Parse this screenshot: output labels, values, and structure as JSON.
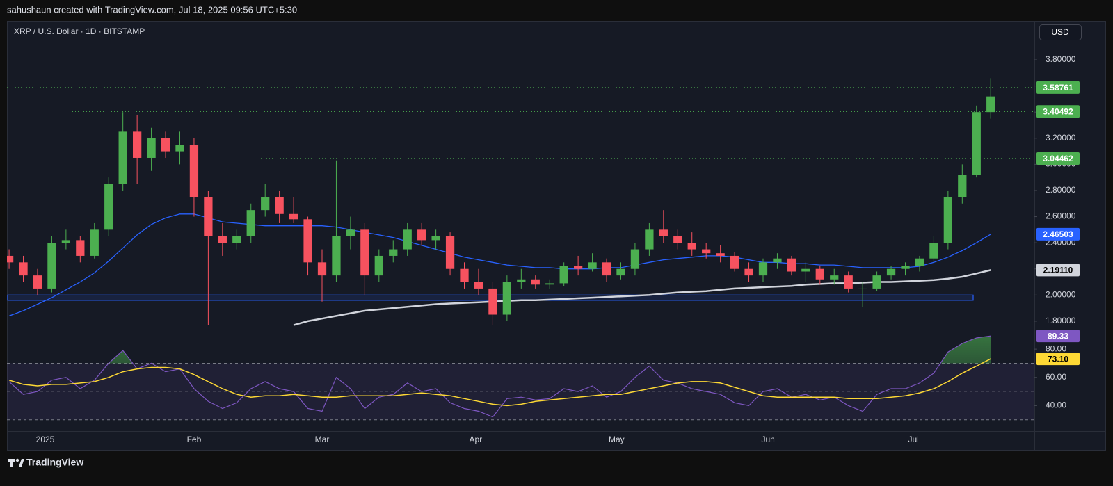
{
  "header": {
    "text": "sahushaun created with TradingView.com, Jul 18, 2025 09:56 UTC+5:30"
  },
  "logo": "TradingView",
  "chart_data": [
    {
      "type": "candlestick",
      "title": "XRP / U.S. Dollar · 1D · BITSTAMP",
      "currency": "USD",
      "categories": [
        null,
        null,
        null,
        null,
        null,
        null,
        null,
        null,
        null,
        null,
        null,
        null,
        null,
        null,
        null,
        null,
        null,
        null,
        null,
        null,
        null,
        null,
        null,
        null,
        null,
        null,
        null,
        null,
        null,
        null,
        null,
        null,
        null,
        null,
        null,
        null,
        null,
        null,
        null,
        null,
        null,
        null,
        null,
        null,
        null,
        null,
        null,
        null,
        null,
        null,
        null,
        null,
        null,
        null,
        null,
        null,
        null,
        null,
        null,
        null,
        null,
        null,
        null,
        null,
        null,
        null,
        null,
        null,
        null,
        null
      ],
      "open": [
        2.3,
        2.25,
        2.15,
        2.05,
        2.4,
        2.42,
        2.3,
        2.5,
        2.85,
        3.25,
        3.05,
        3.2,
        3.1,
        3.15,
        2.75,
        2.45,
        2.4,
        2.45,
        2.65,
        2.75,
        2.62,
        2.58,
        2.25,
        2.15,
        2.45,
        2.5,
        2.15,
        2.3,
        2.35,
        2.5,
        2.42,
        2.45,
        2.2,
        2.1,
        2.05,
        1.85,
        2.1,
        2.12,
        2.08,
        2.09,
        2.22,
        2.2,
        2.25,
        2.15,
        2.2,
        2.35,
        2.5,
        2.45,
        2.4,
        2.35,
        2.32,
        2.3,
        2.2,
        2.15,
        2.25,
        2.28,
        2.18,
        2.2,
        2.12,
        2.15,
        2.05,
        2.05,
        2.15,
        2.2,
        2.22,
        2.28,
        2.4,
        2.75,
        2.92,
        3.4
      ],
      "high": [
        2.35,
        2.3,
        2.2,
        2.45,
        2.5,
        2.45,
        2.55,
        2.9,
        3.4,
        3.38,
        3.28,
        3.25,
        3.25,
        3.2,
        2.8,
        2.55,
        2.5,
        2.7,
        2.85,
        2.8,
        2.75,
        2.6,
        2.35,
        3.03,
        2.6,
        2.55,
        2.35,
        2.42,
        2.55,
        2.55,
        2.5,
        2.48,
        2.25,
        2.2,
        2.1,
        2.15,
        2.2,
        2.15,
        2.12,
        2.25,
        2.3,
        2.32,
        2.28,
        2.25,
        2.4,
        2.55,
        2.65,
        2.5,
        2.48,
        2.4,
        2.38,
        2.33,
        2.25,
        2.28,
        2.32,
        2.3,
        2.25,
        2.22,
        2.2,
        2.18,
        2.1,
        2.18,
        2.22,
        2.25,
        2.3,
        2.45,
        2.8,
        3.0,
        3.45,
        3.66
      ],
      "low": [
        2.2,
        2.1,
        2.0,
        2.02,
        2.35,
        2.25,
        2.28,
        2.45,
        2.8,
        2.85,
        2.95,
        3.05,
        3.0,
        2.6,
        1.77,
        2.3,
        2.35,
        2.4,
        2.6,
        2.55,
        2.55,
        2.15,
        1.95,
        2.1,
        2.35,
        2.0,
        2.1,
        2.25,
        2.3,
        2.38,
        2.35,
        2.15,
        2.05,
        2.0,
        1.77,
        1.8,
        2.05,
        2.05,
        2.05,
        2.07,
        2.15,
        2.18,
        2.1,
        2.12,
        2.15,
        2.3,
        2.4,
        2.35,
        2.3,
        2.28,
        2.25,
        2.18,
        2.1,
        2.1,
        2.2,
        2.15,
        2.1,
        2.08,
        2.08,
        2.02,
        1.91,
        2.03,
        2.12,
        2.15,
        2.18,
        2.25,
        2.35,
        2.7,
        2.9,
        3.35
      ],
      "close": [
        2.25,
        2.15,
        2.05,
        2.4,
        2.42,
        2.3,
        2.5,
        2.85,
        3.25,
        3.05,
        3.2,
        3.1,
        3.15,
        2.75,
        2.45,
        2.4,
        2.45,
        2.65,
        2.75,
        2.62,
        2.58,
        2.25,
        2.15,
        2.45,
        2.5,
        2.15,
        2.3,
        2.35,
        2.5,
        2.42,
        2.45,
        2.2,
        2.1,
        2.05,
        1.85,
        2.1,
        2.12,
        2.08,
        2.09,
        2.22,
        2.2,
        2.25,
        2.15,
        2.2,
        2.35,
        2.5,
        2.45,
        2.4,
        2.35,
        2.32,
        2.3,
        2.2,
        2.15,
        2.25,
        2.28,
        2.18,
        2.2,
        2.12,
        2.15,
        2.05,
        2.05,
        2.15,
        2.2,
        2.22,
        2.28,
        2.4,
        2.75,
        2.92,
        3.4,
        3.52
      ],
      "up_color": "#4caf50",
      "down_color": "#f7525f",
      "xlim": [
        -0.15,
        72.07
      ],
      "xticks": [
        {
          "value": 2.54,
          "label": "2025"
        },
        {
          "value": 13,
          "label": "Feb"
        },
        {
          "value": 22,
          "label": "Mar"
        },
        {
          "value": 32.8,
          "label": "Apr"
        },
        {
          "value": 42.7,
          "label": "May"
        },
        {
          "value": 53.35,
          "label": "Jun"
        },
        {
          "value": 63.57,
          "label": "Jul"
        }
      ],
      "ylim": [
        1.757,
        4.098
      ],
      "yticks": [
        {
          "value": 1.8,
          "label": "1.80000"
        },
        {
          "value": 2.0,
          "label": "2.00000"
        },
        {
          "value": 2.2,
          "label": "2.20000"
        },
        {
          "value": 2.4,
          "label": "2.40000"
        },
        {
          "value": 2.6,
          "label": "2.60000"
        },
        {
          "value": 2.8,
          "label": "2.80000"
        },
        {
          "value": 3.0,
          "label": "3.00000"
        },
        {
          "value": 3.2,
          "label": "3.20000"
        },
        {
          "value": 3.4,
          "label": "3.40000"
        },
        {
          "value": 3.6,
          "label": "3.60000"
        },
        {
          "value": 3.8,
          "label": "3.80000"
        }
      ],
      "grid": false,
      "levels": [
        3.58761,
        3.40492,
        3.04462
      ],
      "level_color": "#4caf50",
      "zone": [
        1.96,
        2.0
      ],
      "zone_color": "#2962ff",
      "series": [
        {
          "color": "#2962ff",
          "label_text_color": "#ffffff",
          "end_label": "2.46503",
          "values": [
            1.84,
            1.88,
            1.93,
            1.98,
            2.04,
            2.1,
            2.17,
            2.26,
            2.36,
            2.46,
            2.54,
            2.59,
            2.62,
            2.62,
            2.59,
            2.56,
            2.55,
            2.54,
            2.53,
            2.53,
            2.53,
            2.53,
            2.53,
            2.52,
            2.5,
            2.48,
            2.46,
            2.44,
            2.41,
            2.38,
            2.35,
            2.32,
            2.29,
            2.27,
            2.25,
            2.23,
            2.22,
            2.21,
            2.21,
            2.2,
            2.2,
            2.2,
            2.21,
            2.21,
            2.23,
            2.25,
            2.27,
            2.28,
            2.29,
            2.3,
            2.3,
            2.29,
            2.27,
            2.25,
            2.25,
            2.24,
            2.24,
            2.23,
            2.23,
            2.22,
            2.21,
            2.21,
            2.21,
            2.21,
            2.22,
            2.25,
            2.29,
            2.34,
            2.4,
            2.46503
          ]
        },
        {
          "color": "#d1d4dc",
          "label_text_color": "#000000",
          "end_label": "2.19110",
          "values": [
            null,
            null,
            null,
            null,
            null,
            null,
            null,
            null,
            null,
            null,
            null,
            null,
            null,
            null,
            null,
            null,
            null,
            null,
            null,
            null,
            1.77,
            1.8,
            1.82,
            1.84,
            1.86,
            1.88,
            1.89,
            1.9,
            1.91,
            1.92,
            1.93,
            1.935,
            1.94,
            1.945,
            1.95,
            1.955,
            1.96,
            1.96,
            1.965,
            1.97,
            1.975,
            1.98,
            1.985,
            1.99,
            1.995,
            2.0,
            2.01,
            2.02,
            2.025,
            2.03,
            2.04,
            2.05,
            2.055,
            2.06,
            2.065,
            2.07,
            2.08,
            2.085,
            2.09,
            2.09,
            2.095,
            2.1,
            2.1,
            2.105,
            2.11,
            2.115,
            2.125,
            2.14,
            2.165,
            2.1911
          ]
        }
      ]
    },
    {
      "type": "line",
      "ylim": [
        22,
        95.8
      ],
      "yticks": [
        {
          "value": 40,
          "label": "40.00"
        },
        {
          "value": 60,
          "label": "60.00"
        },
        {
          "value": 80,
          "label": "80.00"
        }
      ],
      "bands": [
        30,
        70
      ],
      "mid": 50,
      "band_color": "#7e57c2",
      "overbought_color": "#4caf50",
      "series": [
        {
          "color": "#7e57c2",
          "label_text_color": "#ffffff",
          "end_label": "89.33",
          "values": [
            57,
            48,
            50,
            58,
            60,
            52,
            58,
            70,
            79,
            66,
            70,
            64,
            66,
            52,
            43,
            38,
            42,
            52,
            57,
            52,
            50,
            38,
            36,
            60,
            52,
            38,
            46,
            48,
            56,
            50,
            52,
            42,
            38,
            36,
            32,
            45,
            46,
            44,
            45,
            52,
            50,
            54,
            46,
            50,
            60,
            68,
            58,
            56,
            52,
            50,
            48,
            42,
            40,
            50,
            52,
            46,
            48,
            44,
            46,
            40,
            36,
            48,
            52,
            52,
            56,
            63,
            78,
            84,
            88,
            89.33
          ]
        },
        {
          "color": "#fdd835",
          "label_text_color": "#000000",
          "end_label": "73.10",
          "values": [
            58,
            55,
            54,
            55,
            55,
            56,
            57,
            60,
            64,
            66,
            67,
            67,
            66,
            62,
            57,
            52,
            48,
            46,
            47,
            47,
            48,
            47,
            46,
            46,
            47,
            47,
            47,
            47,
            48,
            49,
            48,
            47,
            45,
            43,
            41,
            40,
            41,
            43,
            44,
            45,
            46,
            47,
            48,
            48,
            50,
            52,
            54,
            56,
            57,
            57,
            56,
            53,
            50,
            47,
            46,
            46,
            46,
            46,
            46,
            45,
            45,
            45,
            46,
            47,
            49,
            52,
            57,
            63,
            68,
            73.1
          ]
        }
      ]
    }
  ]
}
